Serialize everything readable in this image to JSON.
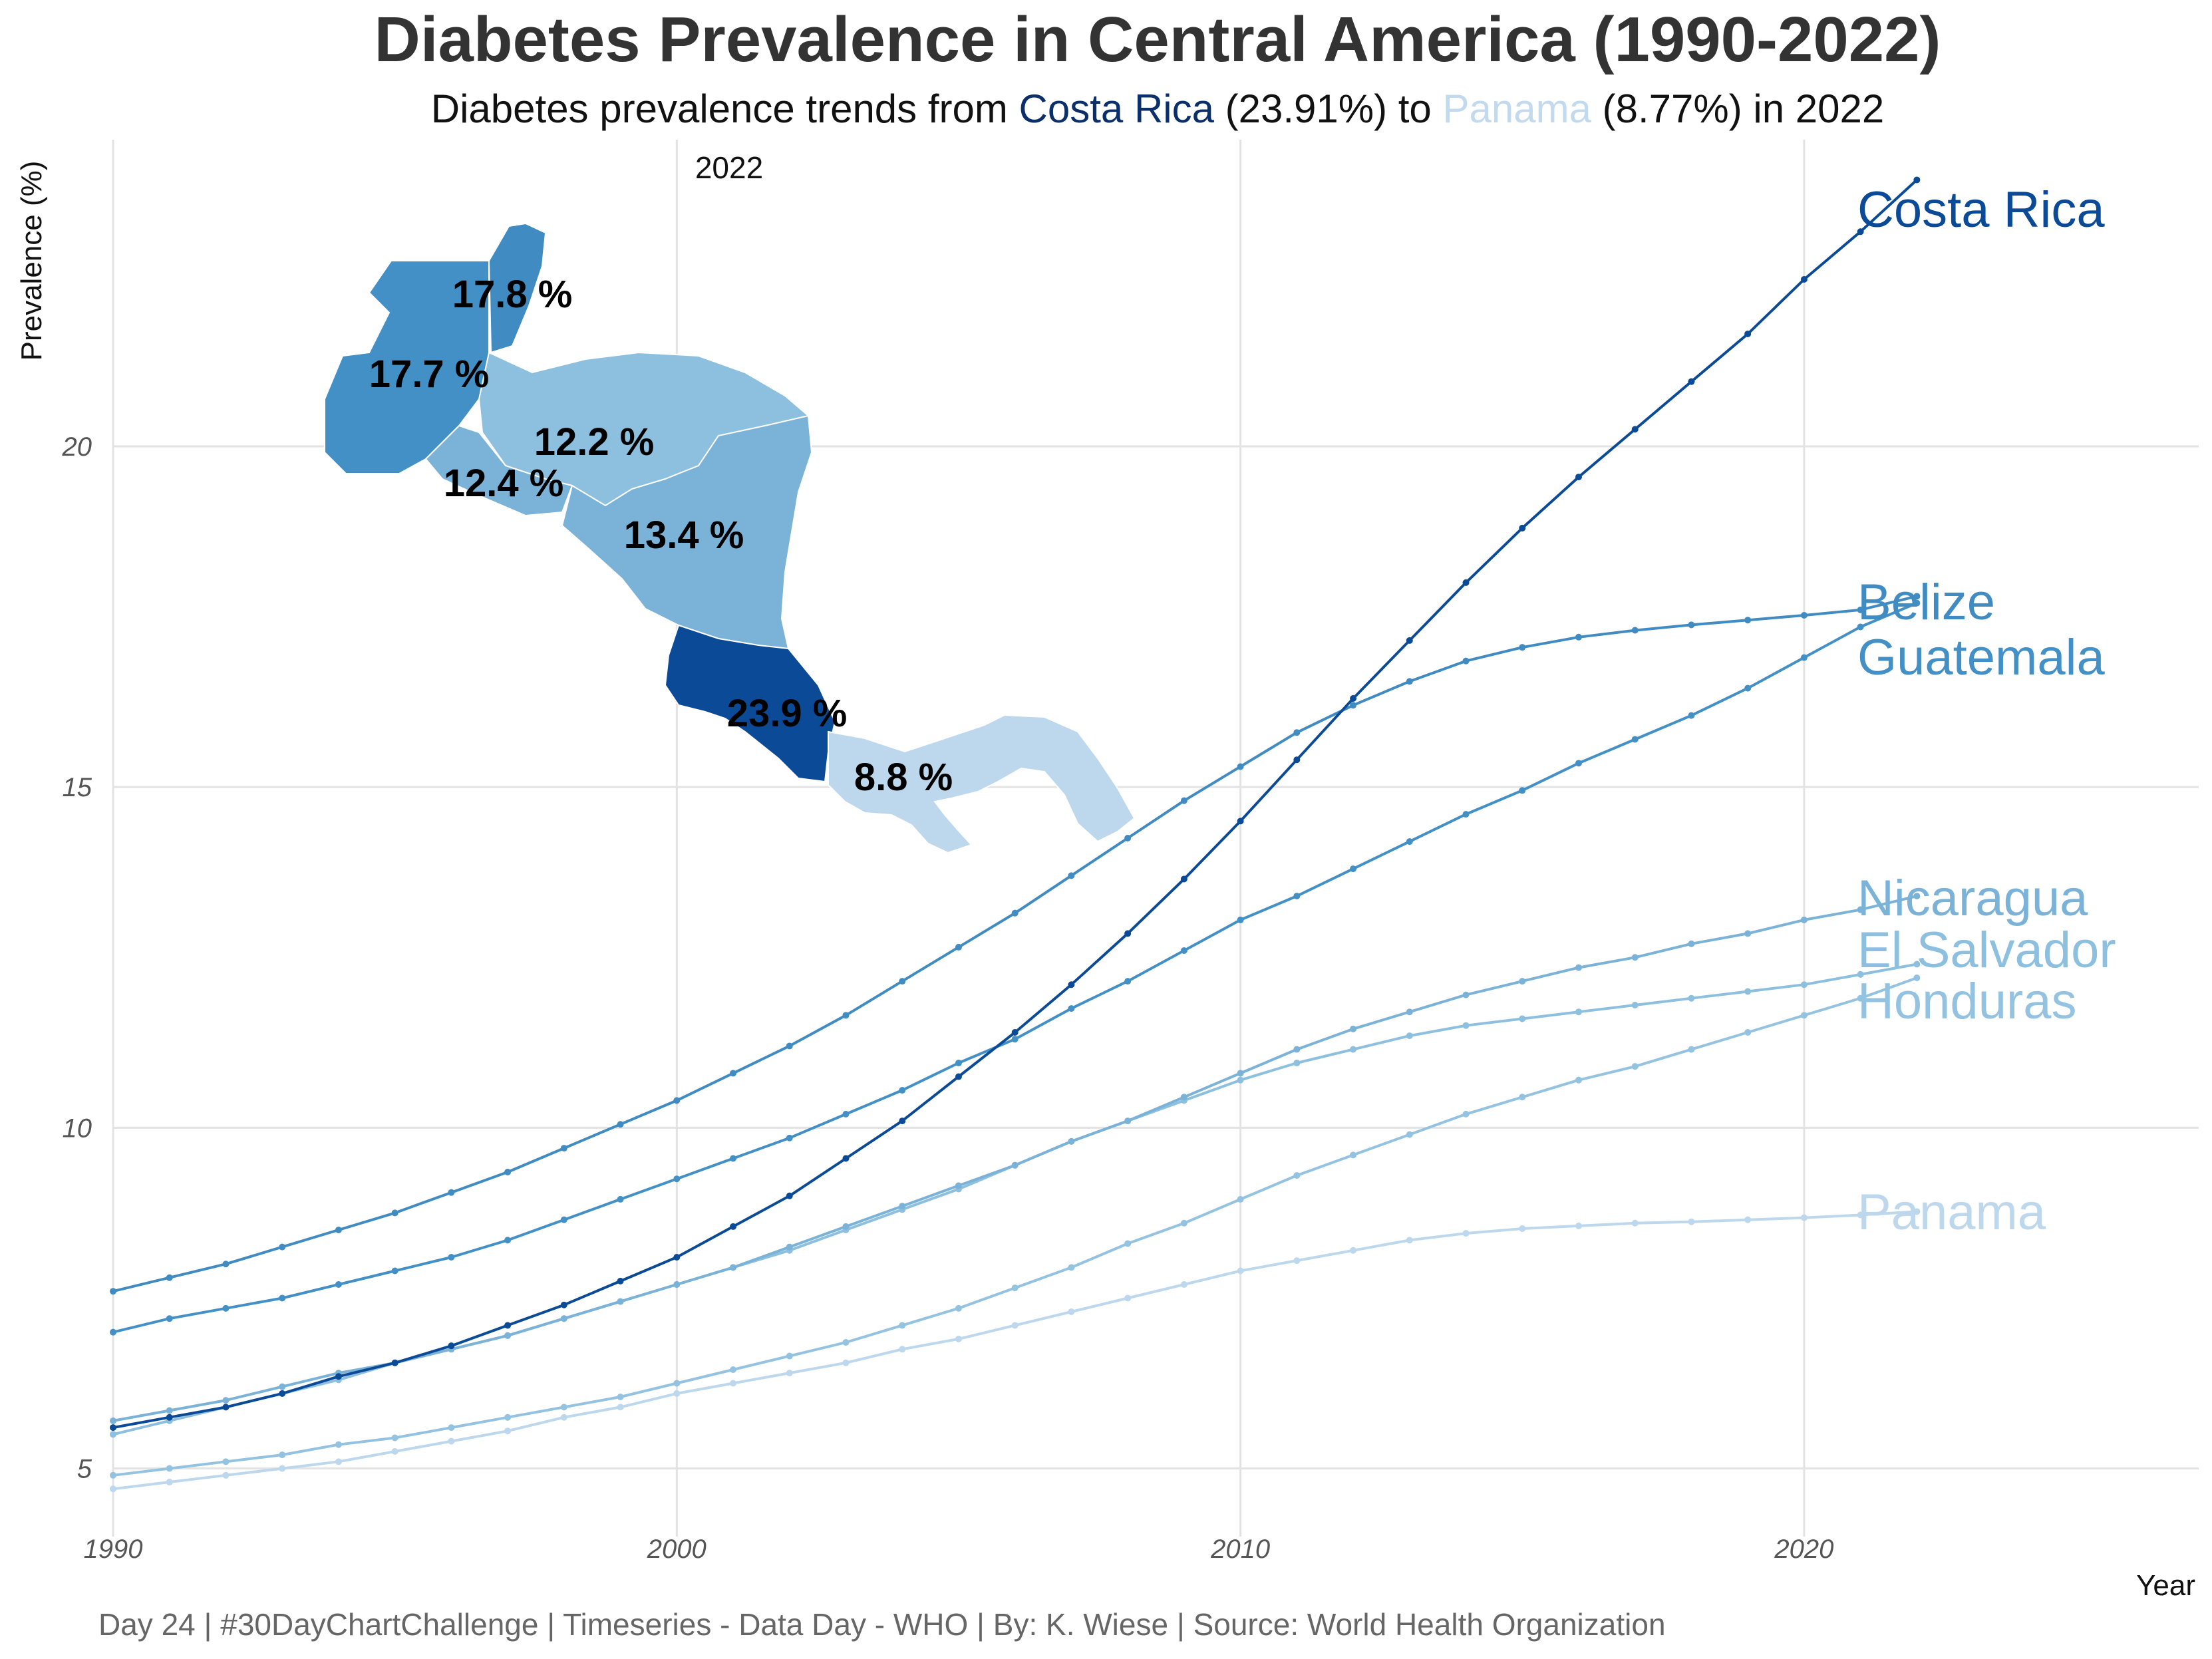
{
  "title": "Diabetes Prevalence in Central America (1990-2022)",
  "subtitle": {
    "prefix": "Diabetes prevalence trends from ",
    "high_country": "Costa Rica",
    "high_value": " (23.91%) to ",
    "low_country": "Panama",
    "low_value": " (8.77%) in 2022"
  },
  "caption": "Day 24 | #30DayChartChallenge | Timeseries - Data Day - WHO | By: K. Wiese | Source: World Health Organization",
  "colors": {
    "Costa Rica": "#0b4a96",
    "Belize": "#3f8bc2",
    "Guatemala": "#4290c6",
    "Nicaragua": "#7ab2d8",
    "El Salvador": "#8dbfde",
    "Honduras": "#93c3e0",
    "Panama": "#bdd7ec",
    "grid": "#e3e3e3"
  },
  "map": {
    "year_label": "2022",
    "labels": [
      {
        "country": "Belize",
        "text": "17.8 %"
      },
      {
        "country": "Guatemala",
        "text": "17.7 %"
      },
      {
        "country": "Honduras",
        "text": "12.2 %"
      },
      {
        "country": "El Salvador",
        "text": "12.4 %"
      },
      {
        "country": "Nicaragua",
        "text": "13.4 %"
      },
      {
        "country": "Costa Rica",
        "text": "23.9 %"
      },
      {
        "country": "Panama",
        "text": "8.8 %"
      }
    ]
  },
  "chart_data": {
    "type": "line",
    "title": "Diabetes Prevalence in Central America (1990-2022)",
    "xlabel": "Year",
    "ylabel": "Prevalence (%)",
    "xlim": [
      1990,
      2027
    ],
    "ylim": [
      4,
      24.5
    ],
    "x_ticks": [
      1990,
      2000,
      2010,
      2020
    ],
    "y_ticks": [
      5,
      10,
      15,
      20
    ],
    "grid": true,
    "legend": "direct labels at line ends",
    "x": [
      1990,
      1991,
      1992,
      1993,
      1994,
      1995,
      1996,
      1997,
      1998,
      1999,
      2000,
      2001,
      2002,
      2003,
      2004,
      2005,
      2006,
      2007,
      2008,
      2009,
      2010,
      2011,
      2012,
      2013,
      2014,
      2015,
      2016,
      2017,
      2018,
      2019,
      2020,
      2021,
      2022
    ],
    "series": [
      {
        "name": "Costa Rica",
        "values": [
          5.6,
          5.75,
          5.9,
          6.1,
          6.35,
          6.55,
          6.8,
          7.1,
          7.4,
          7.75,
          8.1,
          8.55,
          9.0,
          9.55,
          10.1,
          10.75,
          11.4,
          12.1,
          12.85,
          13.65,
          14.5,
          15.4,
          16.3,
          17.15,
          18.0,
          18.8,
          19.55,
          20.25,
          20.95,
          21.65,
          22.45,
          23.15,
          23.91
        ]
      },
      {
        "name": "Belize",
        "values": [
          7.6,
          7.8,
          8.0,
          8.25,
          8.5,
          8.75,
          9.05,
          9.35,
          9.7,
          10.05,
          10.4,
          10.8,
          11.2,
          11.65,
          12.15,
          12.65,
          13.15,
          13.7,
          14.25,
          14.8,
          15.3,
          15.8,
          16.2,
          16.55,
          16.85,
          17.05,
          17.2,
          17.3,
          17.38,
          17.45,
          17.52,
          17.6,
          17.8
        ]
      },
      {
        "name": "Guatemala",
        "values": [
          7.0,
          7.2,
          7.35,
          7.5,
          7.7,
          7.9,
          8.1,
          8.35,
          8.65,
          8.95,
          9.25,
          9.55,
          9.85,
          10.2,
          10.55,
          10.95,
          11.3,
          11.75,
          12.15,
          12.6,
          13.05,
          13.4,
          13.8,
          14.2,
          14.6,
          14.95,
          15.35,
          15.7,
          16.05,
          16.45,
          16.9,
          17.35,
          17.7
        ]
      },
      {
        "name": "Nicaragua",
        "values": [
          5.7,
          5.85,
          6.0,
          6.2,
          6.4,
          6.55,
          6.75,
          6.95,
          7.2,
          7.45,
          7.7,
          7.95,
          8.25,
          8.55,
          8.85,
          9.15,
          9.45,
          9.8,
          10.1,
          10.45,
          10.8,
          11.15,
          11.45,
          11.7,
          11.95,
          12.15,
          12.35,
          12.5,
          12.7,
          12.85,
          13.05,
          13.2,
          13.4
        ]
      },
      {
        "name": "El Salvador",
        "values": [
          5.5,
          5.7,
          5.9,
          6.1,
          6.3,
          6.55,
          6.75,
          6.95,
          7.2,
          7.45,
          7.7,
          7.95,
          8.2,
          8.5,
          8.8,
          9.1,
          9.45,
          9.8,
          10.1,
          10.4,
          10.7,
          10.95,
          11.15,
          11.35,
          11.5,
          11.6,
          11.7,
          11.8,
          11.9,
          12.0,
          12.1,
          12.25,
          12.4
        ]
      },
      {
        "name": "Honduras",
        "values": [
          4.9,
          5.0,
          5.1,
          5.2,
          5.35,
          5.45,
          5.6,
          5.75,
          5.9,
          6.05,
          6.25,
          6.45,
          6.65,
          6.85,
          7.1,
          7.35,
          7.65,
          7.95,
          8.3,
          8.6,
          8.95,
          9.3,
          9.6,
          9.9,
          10.2,
          10.45,
          10.7,
          10.9,
          11.15,
          11.4,
          11.65,
          11.9,
          12.2
        ]
      },
      {
        "name": "Panama",
        "values": [
          4.7,
          4.8,
          4.9,
          5.0,
          5.1,
          5.25,
          5.4,
          5.55,
          5.75,
          5.9,
          6.1,
          6.25,
          6.4,
          6.55,
          6.75,
          6.9,
          7.1,
          7.3,
          7.5,
          7.7,
          7.9,
          8.05,
          8.2,
          8.35,
          8.45,
          8.52,
          8.56,
          8.6,
          8.62,
          8.65,
          8.68,
          8.72,
          8.77
        ]
      }
    ],
    "end_labels": [
      "Costa Rica",
      "Belize",
      "Guatemala",
      "Nicaragua",
      "El Salvador",
      "Honduras",
      "Panama"
    ]
  }
}
